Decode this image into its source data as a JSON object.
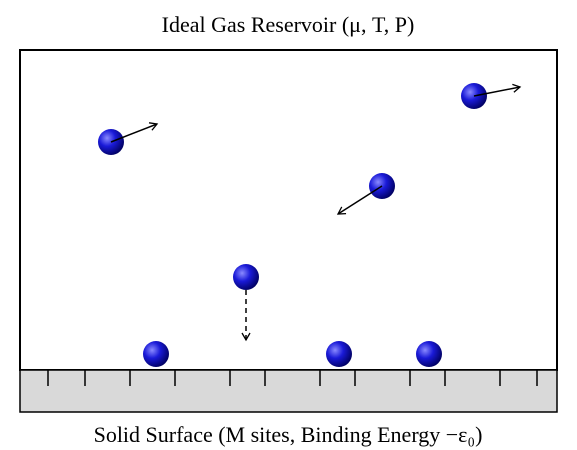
{
  "header": {
    "title": "Ideal Gas Reservoir (μ, T, P)"
  },
  "footer": {
    "caption": "Solid Surface (M sites, Binding Energy −ε₀)"
  }
}
